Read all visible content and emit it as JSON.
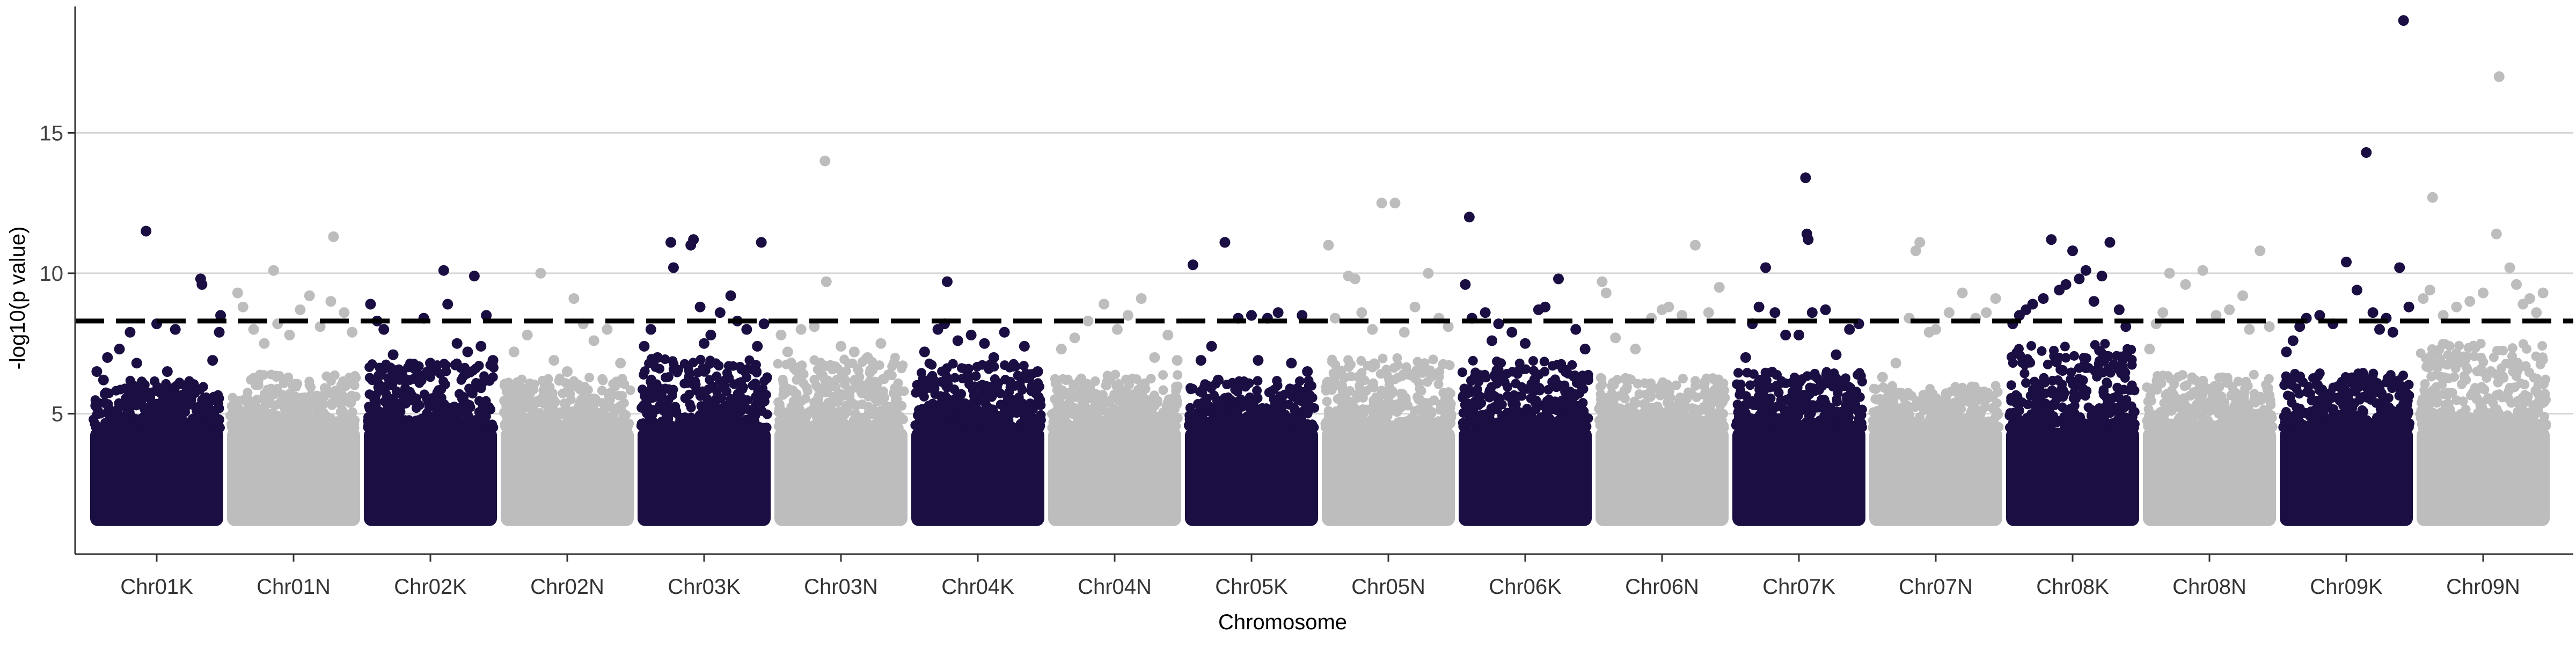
{
  "chart_data": {
    "type": "scatter",
    "title": "",
    "xlabel": "Chromosome",
    "ylabel": "-log10(p value)",
    "ylim": [
      0,
      19.5
    ],
    "yticks": [
      5,
      10,
      15
    ],
    "grid": {
      "horizontal_major": true,
      "vertical": false
    },
    "legend": "none",
    "threshold": {
      "value": 8.3,
      "style": "dashed",
      "color": "#000000"
    },
    "colors": {
      "odd_chromosomes": "#1b0e42",
      "even_chromosomes": "#bdbdbd",
      "grid": "#d6d6d6",
      "axis": "#333333"
    },
    "bulk_range": [
      1.0,
      4.5
    ],
    "chromosomes": [
      {
        "name": "Chr01K",
        "bulk_max": 6.2,
        "points": [
          [
            0.05,
            6.5
          ],
          [
            0.1,
            6.2
          ],
          [
            0.13,
            7.0
          ],
          [
            0.22,
            7.3
          ],
          [
            0.3,
            7.9
          ],
          [
            0.35,
            6.8
          ],
          [
            0.42,
            11.5
          ],
          [
            0.5,
            8.2
          ],
          [
            0.58,
            6.5
          ],
          [
            0.64,
            8.0
          ],
          [
            0.72,
            6.0
          ],
          [
            0.83,
            9.8
          ],
          [
            0.84,
            9.6
          ],
          [
            0.92,
            6.9
          ],
          [
            0.97,
            7.9
          ],
          [
            0.98,
            8.5
          ]
        ]
      },
      {
        "name": "Chr01N",
        "bulk_max": 6.4,
        "points": [
          [
            0.08,
            9.3
          ],
          [
            0.12,
            8.8
          ],
          [
            0.2,
            8.0
          ],
          [
            0.28,
            7.5
          ],
          [
            0.35,
            10.1
          ],
          [
            0.38,
            8.2
          ],
          [
            0.47,
            7.8
          ],
          [
            0.55,
            8.7
          ],
          [
            0.62,
            9.2
          ],
          [
            0.7,
            8.1
          ],
          [
            0.78,
            9.0
          ],
          [
            0.8,
            11.3
          ],
          [
            0.88,
            8.6
          ],
          [
            0.94,
            7.9
          ]
        ]
      },
      {
        "name": "Chr02K",
        "bulk_max": 6.8,
        "points": [
          [
            0.05,
            8.9
          ],
          [
            0.1,
            8.3
          ],
          [
            0.15,
            8.0
          ],
          [
            0.22,
            7.1
          ],
          [
            0.3,
            6.2
          ],
          [
            0.45,
            8.4
          ],
          [
            0.5,
            6.8
          ],
          [
            0.6,
            10.1
          ],
          [
            0.63,
            8.9
          ],
          [
            0.7,
            7.5
          ],
          [
            0.78,
            7.2
          ],
          [
            0.83,
            9.9
          ],
          [
            0.88,
            7.4
          ],
          [
            0.92,
            8.5
          ],
          [
            0.97,
            6.9
          ]
        ]
      },
      {
        "name": "Chr02N",
        "bulk_max": 6.3,
        "points": [
          [
            0.1,
            7.2
          ],
          [
            0.2,
            7.8
          ],
          [
            0.3,
            10.0
          ],
          [
            0.4,
            6.9
          ],
          [
            0.5,
            6.5
          ],
          [
            0.55,
            9.1
          ],
          [
            0.62,
            8.2
          ],
          [
            0.7,
            7.6
          ],
          [
            0.8,
            8.0
          ],
          [
            0.9,
            6.8
          ]
        ]
      },
      {
        "name": "Chr03K",
        "bulk_max": 7.0,
        "points": [
          [
            0.05,
            7.4
          ],
          [
            0.1,
            8.0
          ],
          [
            0.15,
            7.0
          ],
          [
            0.25,
            11.1
          ],
          [
            0.27,
            10.2
          ],
          [
            0.4,
            11.0
          ],
          [
            0.42,
            11.2
          ],
          [
            0.47,
            8.8
          ],
          [
            0.5,
            7.5
          ],
          [
            0.55,
            7.8
          ],
          [
            0.62,
            8.6
          ],
          [
            0.7,
            9.2
          ],
          [
            0.75,
            8.3
          ],
          [
            0.82,
            8.0
          ],
          [
            0.9,
            7.4
          ],
          [
            0.93,
            11.1
          ],
          [
            0.95,
            8.2
          ]
        ]
      },
      {
        "name": "Chr03N",
        "bulk_max": 7.0,
        "points": [
          [
            0.05,
            7.8
          ],
          [
            0.1,
            7.2
          ],
          [
            0.2,
            8.0
          ],
          [
            0.3,
            8.1
          ],
          [
            0.38,
            14.0
          ],
          [
            0.39,
            9.7
          ],
          [
            0.5,
            7.4
          ],
          [
            0.6,
            7.2
          ],
          [
            0.7,
            7.0
          ],
          [
            0.8,
            7.5
          ],
          [
            0.9,
            6.8
          ]
        ]
      },
      {
        "name": "Chr04K",
        "bulk_max": 6.8,
        "points": [
          [
            0.1,
            7.2
          ],
          [
            0.2,
            8.0
          ],
          [
            0.25,
            8.2
          ],
          [
            0.27,
            9.7
          ],
          [
            0.35,
            7.6
          ],
          [
            0.45,
            7.8
          ],
          [
            0.55,
            7.5
          ],
          [
            0.62,
            7.0
          ],
          [
            0.7,
            7.9
          ],
          [
            0.85,
            7.4
          ],
          [
            0.95,
            6.5
          ]
        ]
      },
      {
        "name": "Chr04N",
        "bulk_max": 6.4,
        "points": [
          [
            0.1,
            7.3
          ],
          [
            0.2,
            7.7
          ],
          [
            0.3,
            8.3
          ],
          [
            0.42,
            8.9
          ],
          [
            0.52,
            8.0
          ],
          [
            0.6,
            8.5
          ],
          [
            0.7,
            9.1
          ],
          [
            0.8,
            7.0
          ],
          [
            0.9,
            7.8
          ],
          [
            0.97,
            6.9
          ]
        ]
      },
      {
        "name": "Chr05K",
        "bulk_max": 6.2,
        "points": [
          [
            0.06,
            10.3
          ],
          [
            0.12,
            6.9
          ],
          [
            0.2,
            7.4
          ],
          [
            0.25,
            6.2
          ],
          [
            0.3,
            11.1
          ],
          [
            0.4,
            8.4
          ],
          [
            0.5,
            8.5
          ],
          [
            0.55,
            6.9
          ],
          [
            0.62,
            8.4
          ],
          [
            0.7,
            8.6
          ],
          [
            0.8,
            6.8
          ],
          [
            0.88,
            8.5
          ],
          [
            0.92,
            6.5
          ]
        ]
      },
      {
        "name": "Chr05N",
        "bulk_max": 7.0,
        "points": [
          [
            0.05,
            11.0
          ],
          [
            0.1,
            8.4
          ],
          [
            0.2,
            9.9
          ],
          [
            0.25,
            9.8
          ],
          [
            0.3,
            8.6
          ],
          [
            0.38,
            8.0
          ],
          [
            0.45,
            12.5
          ],
          [
            0.55,
            12.5
          ],
          [
            0.62,
            7.9
          ],
          [
            0.7,
            8.8
          ],
          [
            0.8,
            10.0
          ],
          [
            0.88,
            8.4
          ],
          [
            0.95,
            8.1
          ]
        ]
      },
      {
        "name": "Chr06K",
        "bulk_max": 6.9,
        "points": [
          [
            0.05,
            9.6
          ],
          [
            0.08,
            12.0
          ],
          [
            0.1,
            8.4
          ],
          [
            0.2,
            8.6
          ],
          [
            0.25,
            7.6
          ],
          [
            0.3,
            8.2
          ],
          [
            0.4,
            7.9
          ],
          [
            0.5,
            7.5
          ],
          [
            0.6,
            8.7
          ],
          [
            0.65,
            8.8
          ],
          [
            0.75,
            9.8
          ],
          [
            0.88,
            8.0
          ],
          [
            0.95,
            7.3
          ]
        ]
      },
      {
        "name": "Chr06N",
        "bulk_max": 6.3,
        "points": [
          [
            0.05,
            9.7
          ],
          [
            0.08,
            9.3
          ],
          [
            0.15,
            7.7
          ],
          [
            0.3,
            7.3
          ],
          [
            0.42,
            8.4
          ],
          [
            0.5,
            8.7
          ],
          [
            0.55,
            8.8
          ],
          [
            0.65,
            8.5
          ],
          [
            0.75,
            11.0
          ],
          [
            0.85,
            8.6
          ],
          [
            0.93,
            9.5
          ]
        ]
      },
      {
        "name": "Chr07K",
        "bulk_max": 6.5,
        "points": [
          [
            0.1,
            7.0
          ],
          [
            0.15,
            8.2
          ],
          [
            0.2,
            8.8
          ],
          [
            0.25,
            10.2
          ],
          [
            0.32,
            8.6
          ],
          [
            0.4,
            7.8
          ],
          [
            0.5,
            7.8
          ],
          [
            0.55,
            13.4
          ],
          [
            0.56,
            11.4
          ],
          [
            0.57,
            11.2
          ],
          [
            0.6,
            8.6
          ],
          [
            0.7,
            8.7
          ],
          [
            0.78,
            7.1
          ],
          [
            0.88,
            8.0
          ],
          [
            0.95,
            8.2
          ]
        ]
      },
      {
        "name": "Chr07N",
        "bulk_max": 6.0,
        "points": [
          [
            0.1,
            6.3
          ],
          [
            0.2,
            6.8
          ],
          [
            0.3,
            8.4
          ],
          [
            0.35,
            10.8
          ],
          [
            0.38,
            11.1
          ],
          [
            0.45,
            7.9
          ],
          [
            0.5,
            8.0
          ],
          [
            0.6,
            8.6
          ],
          [
            0.7,
            9.3
          ],
          [
            0.8,
            8.4
          ],
          [
            0.88,
            8.6
          ],
          [
            0.95,
            9.1
          ]
        ]
      },
      {
        "name": "Chr08K",
        "bulk_max": 7.5,
        "points": [
          [
            0.05,
            8.2
          ],
          [
            0.1,
            8.5
          ],
          [
            0.15,
            8.7
          ],
          [
            0.2,
            8.9
          ],
          [
            0.28,
            9.1
          ],
          [
            0.34,
            11.2
          ],
          [
            0.4,
            9.4
          ],
          [
            0.45,
            9.6
          ],
          [
            0.5,
            10.8
          ],
          [
            0.55,
            9.8
          ],
          [
            0.6,
            10.1
          ],
          [
            0.66,
            9.0
          ],
          [
            0.72,
            9.9
          ],
          [
            0.78,
            11.1
          ],
          [
            0.85,
            8.7
          ],
          [
            0.9,
            8.1
          ]
        ]
      },
      {
        "name": "Chr08N",
        "bulk_max": 6.4,
        "points": [
          [
            0.05,
            7.3
          ],
          [
            0.1,
            8.2
          ],
          [
            0.15,
            8.6
          ],
          [
            0.2,
            10.0
          ],
          [
            0.32,
            9.6
          ],
          [
            0.45,
            10.1
          ],
          [
            0.55,
            8.5
          ],
          [
            0.65,
            8.7
          ],
          [
            0.75,
            9.2
          ],
          [
            0.8,
            8.0
          ],
          [
            0.88,
            10.8
          ],
          [
            0.95,
            8.1
          ]
        ]
      },
      {
        "name": "Chr09K",
        "bulk_max": 6.5,
        "points": [
          [
            0.05,
            7.2
          ],
          [
            0.1,
            7.6
          ],
          [
            0.15,
            8.1
          ],
          [
            0.2,
            8.4
          ],
          [
            0.3,
            8.5
          ],
          [
            0.4,
            8.2
          ],
          [
            0.5,
            10.4
          ],
          [
            0.58,
            9.4
          ],
          [
            0.65,
            14.3
          ],
          [
            0.7,
            8.6
          ],
          [
            0.75,
            8.0
          ],
          [
            0.8,
            8.4
          ],
          [
            0.85,
            7.9
          ],
          [
            0.9,
            10.2
          ],
          [
            0.93,
            19.0
          ],
          [
            0.97,
            8.8
          ]
        ]
      },
      {
        "name": "Chr09N",
        "bulk_max": 7.5,
        "points": [
          [
            0.05,
            9.1
          ],
          [
            0.1,
            9.4
          ],
          [
            0.12,
            12.7
          ],
          [
            0.2,
            8.5
          ],
          [
            0.3,
            8.8
          ],
          [
            0.4,
            9.0
          ],
          [
            0.5,
            9.3
          ],
          [
            0.6,
            11.4
          ],
          [
            0.62,
            17.0
          ],
          [
            0.7,
            10.2
          ],
          [
            0.75,
            9.6
          ],
          [
            0.8,
            8.9
          ],
          [
            0.85,
            9.1
          ],
          [
            0.9,
            8.6
          ],
          [
            0.95,
            9.3
          ]
        ]
      }
    ]
  }
}
